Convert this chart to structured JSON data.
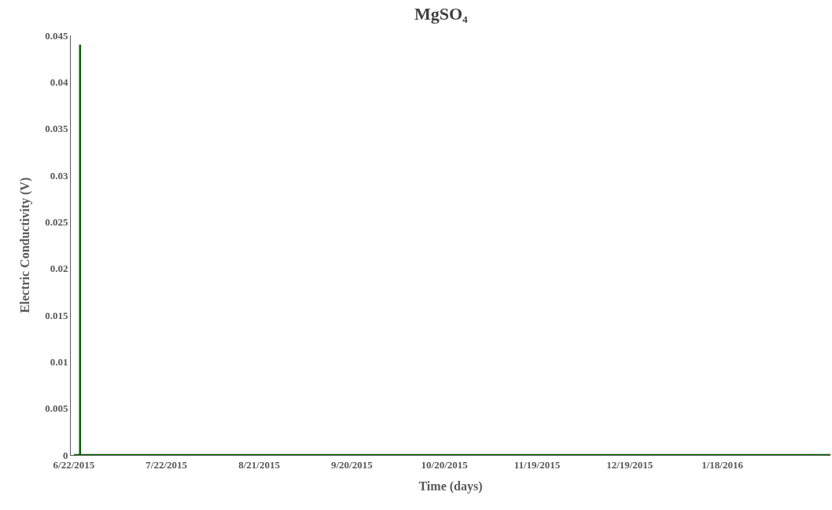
{
  "chart_data": {
    "type": "line",
    "title": "MgSO₄",
    "xlabel": "Time (days)",
    "ylabel": "Electric Conductivity (V)",
    "x": [
      "2015-06-22",
      "2015-06-24",
      "2015-06-24",
      "2015-06-24",
      "2016-02-22"
    ],
    "series": [
      {
        "color": "#006400",
        "values": [
          0,
          0,
          0.044,
          0,
          0
        ]
      }
    ],
    "xlim": [
      "2015-06-21",
      "2016-02-22"
    ],
    "xticks": [
      {
        "value": "2015-06-22",
        "label": "6/22/2015"
      },
      {
        "value": "2015-07-22",
        "label": "7/22/2015"
      },
      {
        "value": "2015-08-21",
        "label": "8/21/2015"
      },
      {
        "value": "2015-09-20",
        "label": "9/20/2015"
      },
      {
        "value": "2015-10-20",
        "label": "10/20/2015"
      },
      {
        "value": "2015-11-19",
        "label": "11/19/2015"
      },
      {
        "value": "2015-12-19",
        "label": "12/19/2015"
      },
      {
        "value": "2016-01-18",
        "label": "1/18/2016"
      }
    ],
    "ylim": [
      0,
      0.045
    ],
    "yticks": [
      0,
      0.005,
      0.01,
      0.015,
      0.02,
      0.025,
      0.03,
      0.035,
      0.04,
      0.045
    ],
    "marker": "none",
    "line_style": "solid"
  }
}
